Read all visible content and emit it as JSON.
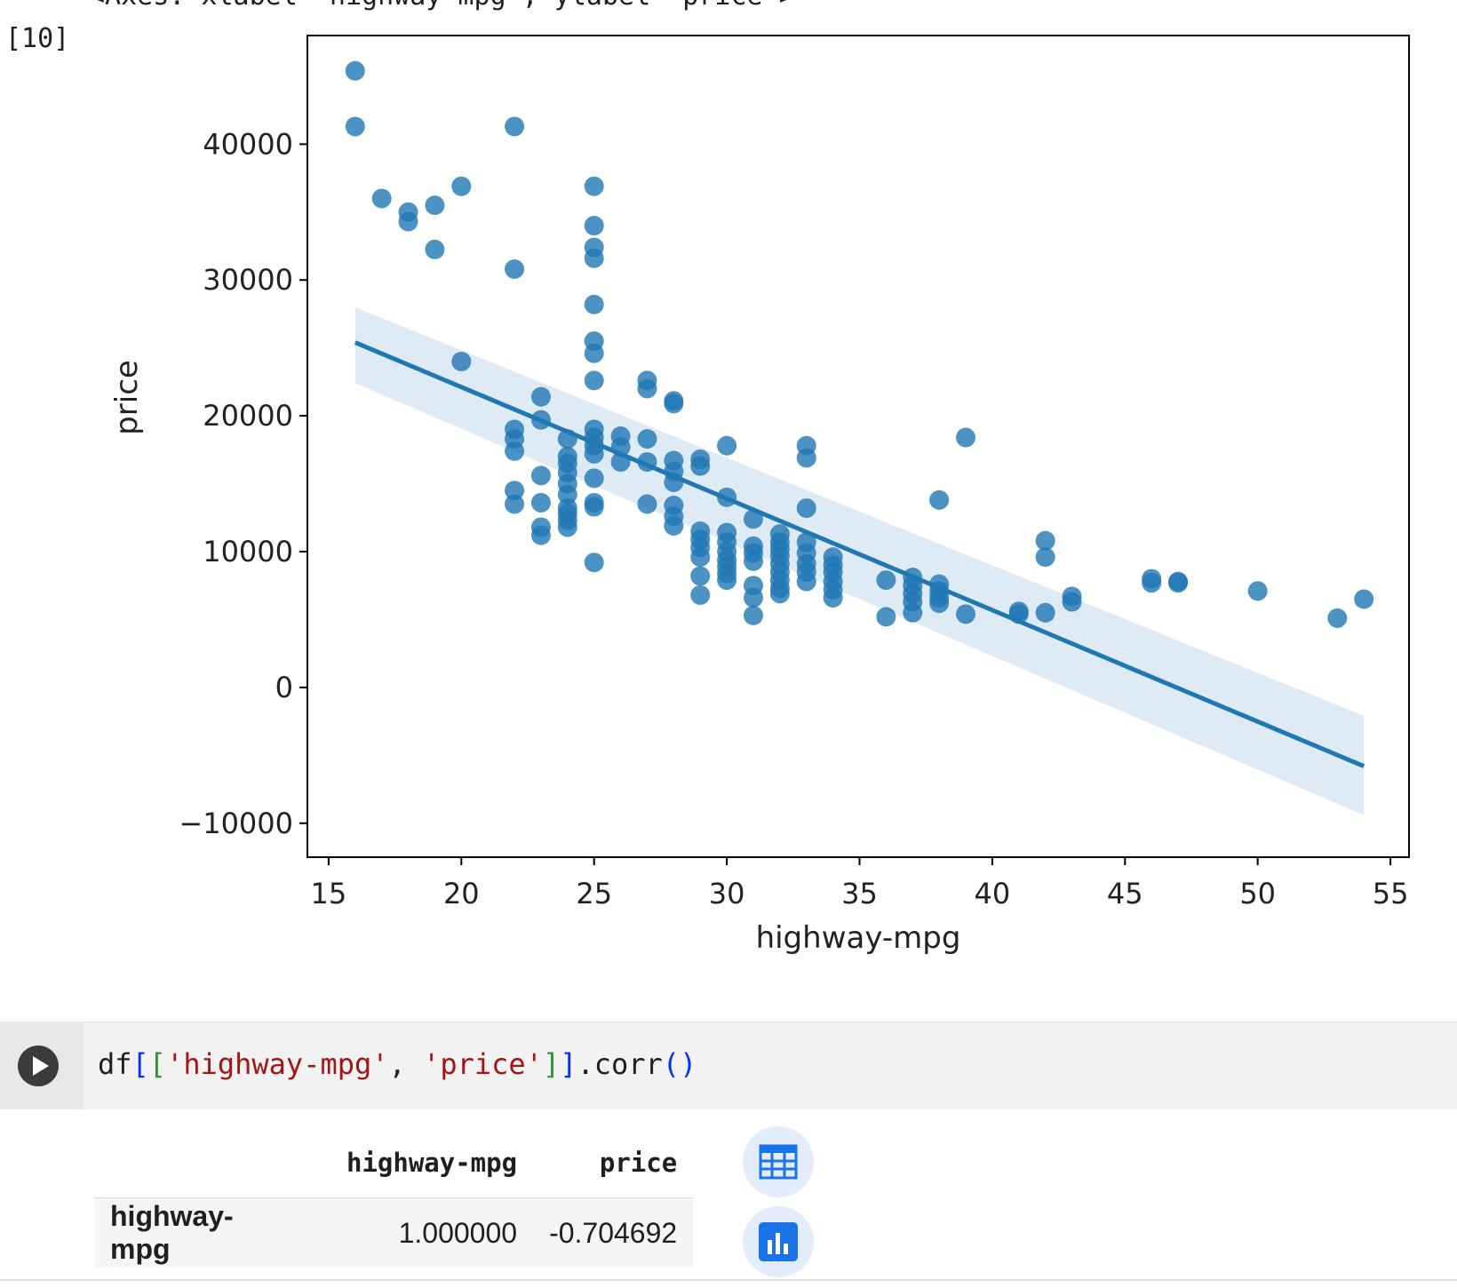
{
  "output": {
    "axes_repr": "<Axes: xlabel='highway-mpg', ylabel='price'>",
    "exec_count": "[10]"
  },
  "chart_data": {
    "type": "scatter",
    "xlabel": "highway-mpg",
    "ylabel": "price",
    "xlim": [
      14.2,
      55.7
    ],
    "ylim": [
      -12500,
      48000
    ],
    "xticks": [
      15,
      20,
      25,
      30,
      35,
      40,
      45,
      50,
      55
    ],
    "yticks": [
      -10000,
      0,
      10000,
      20000,
      30000,
      40000
    ],
    "ytick_labels": [
      "−10000",
      "0",
      "10000",
      "20000",
      "30000",
      "40000"
    ],
    "marker_color": "#1f77b4",
    "grid": false,
    "points": [
      [
        16,
        45400
      ],
      [
        16,
        41300
      ],
      [
        17,
        36000
      ],
      [
        18,
        35000
      ],
      [
        18,
        34300
      ],
      [
        19,
        35500
      ],
      [
        19,
        32250
      ],
      [
        20,
        36900
      ],
      [
        20,
        24000
      ],
      [
        22,
        41300
      ],
      [
        22,
        30800
      ],
      [
        22,
        19000
      ],
      [
        22,
        18300
      ],
      [
        22,
        17400
      ],
      [
        22,
        14500
      ],
      [
        22,
        13500
      ],
      [
        23,
        21400
      ],
      [
        23,
        19700
      ],
      [
        23,
        15600
      ],
      [
        23,
        13600
      ],
      [
        23,
        11800
      ],
      [
        23,
        11200
      ],
      [
        24,
        18300
      ],
      [
        24,
        17000
      ],
      [
        24,
        16500
      ],
      [
        24,
        15800
      ],
      [
        24,
        15000
      ],
      [
        24,
        14200
      ],
      [
        24,
        13200
      ],
      [
        24,
        12800
      ],
      [
        24,
        12300
      ],
      [
        24,
        11800
      ],
      [
        25,
        36900
      ],
      [
        25,
        34000
      ],
      [
        25,
        32400
      ],
      [
        25,
        31600
      ],
      [
        25,
        28200
      ],
      [
        25,
        25500
      ],
      [
        25,
        24600
      ],
      [
        25,
        22600
      ],
      [
        25,
        19000
      ],
      [
        25,
        18400
      ],
      [
        25,
        17800
      ],
      [
        25,
        17200
      ],
      [
        25,
        15400
      ],
      [
        25,
        13600
      ],
      [
        25,
        13300
      ],
      [
        25,
        9200
      ],
      [
        26,
        18500
      ],
      [
        26,
        17700
      ],
      [
        26,
        16600
      ],
      [
        27,
        22600
      ],
      [
        27,
        22000
      ],
      [
        27,
        18300
      ],
      [
        27,
        16600
      ],
      [
        27,
        13500
      ],
      [
        28,
        21100
      ],
      [
        28,
        20900
      ],
      [
        28,
        16700
      ],
      [
        28,
        15900
      ],
      [
        28,
        15100
      ],
      [
        28,
        13400
      ],
      [
        28,
        12600
      ],
      [
        28,
        11900
      ],
      [
        29,
        16800
      ],
      [
        29,
        16300
      ],
      [
        29,
        11500
      ],
      [
        29,
        10900
      ],
      [
        29,
        10300
      ],
      [
        29,
        9600
      ],
      [
        29,
        8200
      ],
      [
        29,
        6800
      ],
      [
        30,
        17800
      ],
      [
        30,
        14000
      ],
      [
        30,
        11400
      ],
      [
        30,
        10700
      ],
      [
        30,
        10000
      ],
      [
        30,
        9400
      ],
      [
        30,
        8900
      ],
      [
        30,
        8400
      ],
      [
        30,
        7900
      ],
      [
        31,
        12400
      ],
      [
        31,
        10400
      ],
      [
        31,
        9900
      ],
      [
        31,
        9300
      ],
      [
        31,
        7500
      ],
      [
        31,
        6600
      ],
      [
        31,
        5300
      ],
      [
        32,
        11300
      ],
      [
        32,
        10700
      ],
      [
        32,
        10200
      ],
      [
        32,
        9700
      ],
      [
        32,
        9100
      ],
      [
        32,
        8500
      ],
      [
        32,
        7900
      ],
      [
        32,
        7300
      ],
      [
        32,
        6900
      ],
      [
        33,
        17800
      ],
      [
        33,
        16900
      ],
      [
        33,
        13200
      ],
      [
        33,
        10700
      ],
      [
        33,
        9900
      ],
      [
        33,
        9100
      ],
      [
        33,
        8500
      ],
      [
        33,
        7800
      ],
      [
        34,
        9600
      ],
      [
        34,
        9000
      ],
      [
        34,
        8500
      ],
      [
        34,
        7800
      ],
      [
        34,
        7200
      ],
      [
        34,
        6600
      ],
      [
        36,
        7900
      ],
      [
        36,
        5200
      ],
      [
        37,
        8100
      ],
      [
        37,
        7500
      ],
      [
        37,
        6900
      ],
      [
        37,
        6300
      ],
      [
        37,
        5500
      ],
      [
        38,
        7600
      ],
      [
        38,
        7100
      ],
      [
        38,
        6600
      ],
      [
        38,
        6200
      ],
      [
        38,
        13800
      ],
      [
        39,
        18400
      ],
      [
        39,
        5400
      ],
      [
        41,
        5600
      ],
      [
        41,
        5400
      ],
      [
        42,
        10800
      ],
      [
        42,
        9600
      ],
      [
        42,
        5500
      ],
      [
        43,
        6700
      ],
      [
        43,
        6300
      ],
      [
        46,
        8000
      ],
      [
        46,
        7700
      ],
      [
        47,
        7800
      ],
      [
        47,
        7700
      ],
      [
        50,
        7100
      ],
      [
        53,
        5100
      ],
      [
        54,
        6500
      ]
    ],
    "regression": {
      "x": [
        16,
        54
      ],
      "y": [
        25400,
        -5800
      ],
      "ci_lower": [
        22400,
        -9400
      ],
      "ci_upper": [
        28000,
        -2100
      ]
    }
  },
  "code_cell": {
    "run_icon": "play-icon",
    "tokens": {
      "df": "df",
      "open_sq": "[",
      "open_sq2": "[",
      "str1": "'highway-mpg'",
      "comma": ", ",
      "str2": "'price'",
      "close_sq2": "]",
      "close_sq": "]",
      "method": ".corr",
      "open_par": "(",
      "close_par": ")"
    }
  },
  "result_table": {
    "columns": [
      "highway-mpg",
      "price"
    ],
    "rows": [
      {
        "index": "highway-mpg",
        "values": [
          "1.000000",
          "-0.704692"
        ]
      }
    ]
  },
  "side_buttons": [
    {
      "icon": "table-icon"
    },
    {
      "icon": "bar-chart-icon"
    }
  ]
}
